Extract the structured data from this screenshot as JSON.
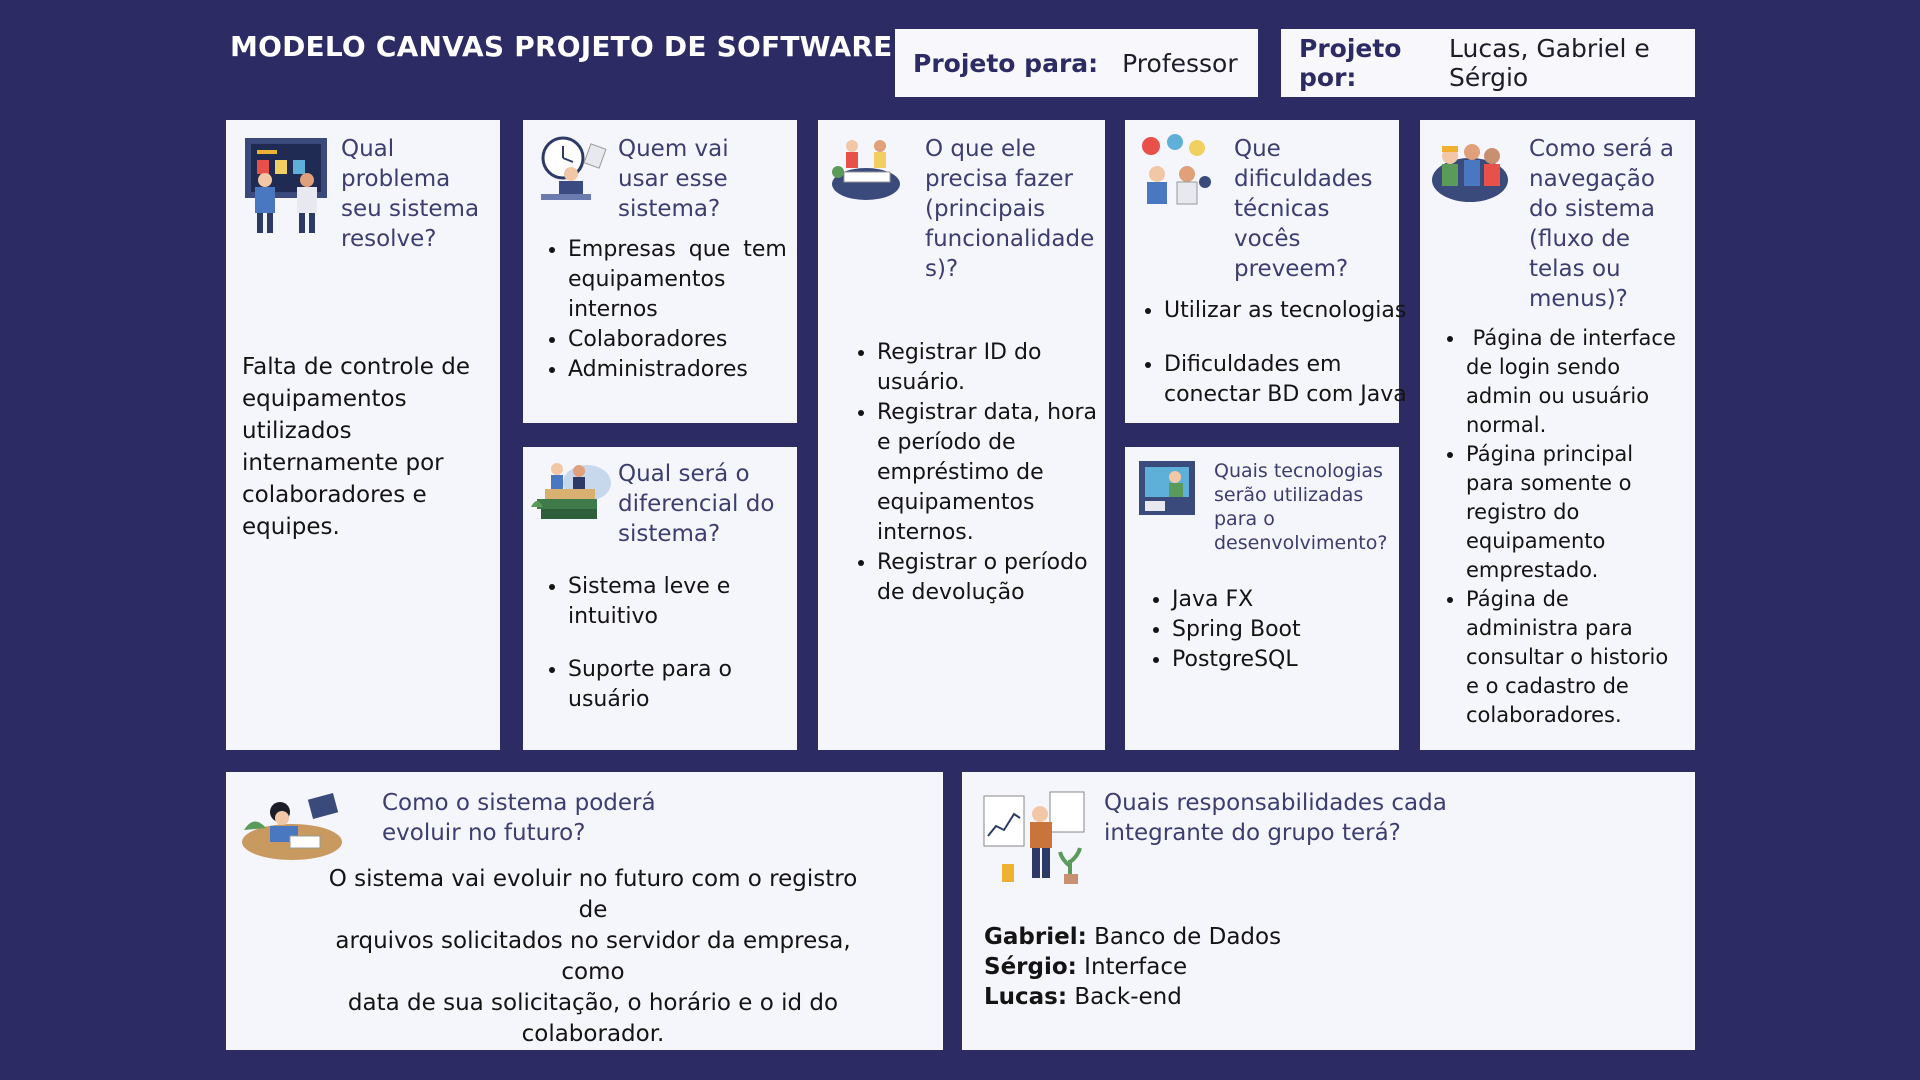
{
  "header": {
    "title": "MODELO CANVAS PROJETO DE SOFTWARE",
    "para_label": "Projeto para:",
    "para_value": "Professor",
    "por_label": "Projeto por:",
    "por_value": "Lucas, Gabriel e Sérgio"
  },
  "cards": {
    "problema": {
      "question": [
        "Qual",
        "problema",
        "seu sistema",
        "resolve?"
      ],
      "body": [
        "Falta de controle de",
        "equipamentos",
        "utilizados",
        "internamente por",
        "colaboradores e",
        "equipes."
      ],
      "icon": "strategy-meeting-illustration"
    },
    "usuarios": {
      "question": [
        "Quem vai",
        "usar esse",
        "sistema?"
      ],
      "items": [
        [
          "Empresas que tem",
          "equipamentos",
          "internos"
        ],
        [
          "Colaboradores"
        ],
        [
          "Administradores"
        ]
      ],
      "icon": "office-worker-clock-illustration"
    },
    "diferencial": {
      "question": [
        "Qual será o",
        "diferencial do",
        "sistema?"
      ],
      "items": [
        [
          "Sistema leve e",
          "intuitivo"
        ],
        [
          "Suporte para o",
          "usuário"
        ]
      ],
      "icon": "people-on-books-illustration"
    },
    "funcionalidades": {
      "question": [
        "O que ele",
        "precisa fazer",
        "(principais",
        "funcionalidade",
        "s)?"
      ],
      "items": [
        [
          "Registrar ID do",
          "usuário."
        ],
        [
          "Registrar data, hora",
          "e período de",
          "empréstimo de",
          "equipamentos",
          "internos."
        ],
        [
          "Registrar o período",
          "de devolução"
        ]
      ],
      "icon": "team-working-illustration"
    },
    "dificuldades": {
      "question": [
        "Que",
        "dificuldades",
        "técnicas",
        "vocês",
        "preveem?"
      ],
      "items": [
        [
          "Utilizar as tecnologias"
        ],
        [
          "Dificuldades em",
          "conectar BD com Java"
        ]
      ],
      "icon": "group-discussion-illustration"
    },
    "tecnologias": {
      "question": [
        "Quais tecnologias",
        "serão utilizadas",
        "para o",
        "desenvolvimento?"
      ],
      "items": [
        [
          "Java FX"
        ],
        [
          "Spring Boot"
        ],
        [
          "PostgreSQL"
        ]
      ],
      "icon": "developer-screen-illustration"
    },
    "navegacao": {
      "question": [
        "Como será a",
        "navegação",
        "do sistema",
        "(fluxo de",
        "telas ou",
        "menus)?"
      ],
      "items": [
        [
          " Página de interface",
          "de login sendo",
          "admin ou usuário",
          "normal."
        ],
        [
          "Página principal",
          "para somente o",
          "registro do",
          "equipamento",
          "emprestado."
        ],
        [
          "Página de",
          "administra para",
          "consultar o historio",
          "e o cadastro de",
          "colaboradores."
        ]
      ],
      "icon": "workers-group-illustration"
    },
    "futuro": {
      "question": [
        "Como o sistema poderá",
        "evoluir no futuro?"
      ],
      "body": [
        "O sistema vai evoluir no futuro com o registro de",
        "arquivos solicitados no servidor da empresa, como",
        "data de sua solicitação, o horário e o id do",
        "colaborador."
      ],
      "icon": "student-desk-illustration"
    },
    "responsabilidades": {
      "question": [
        "Quais responsabilidades cada",
        "integrante do grupo terá?"
      ],
      "members": [
        {
          "name": "Gabriel:",
          "role": " Banco de Dados"
        },
        {
          "name": "Sérgio:",
          "role": " Interface"
        },
        {
          "name": "Lucas:",
          "role": " Back-end"
        }
      ],
      "icon": "person-with-charts-illustration"
    }
  }
}
